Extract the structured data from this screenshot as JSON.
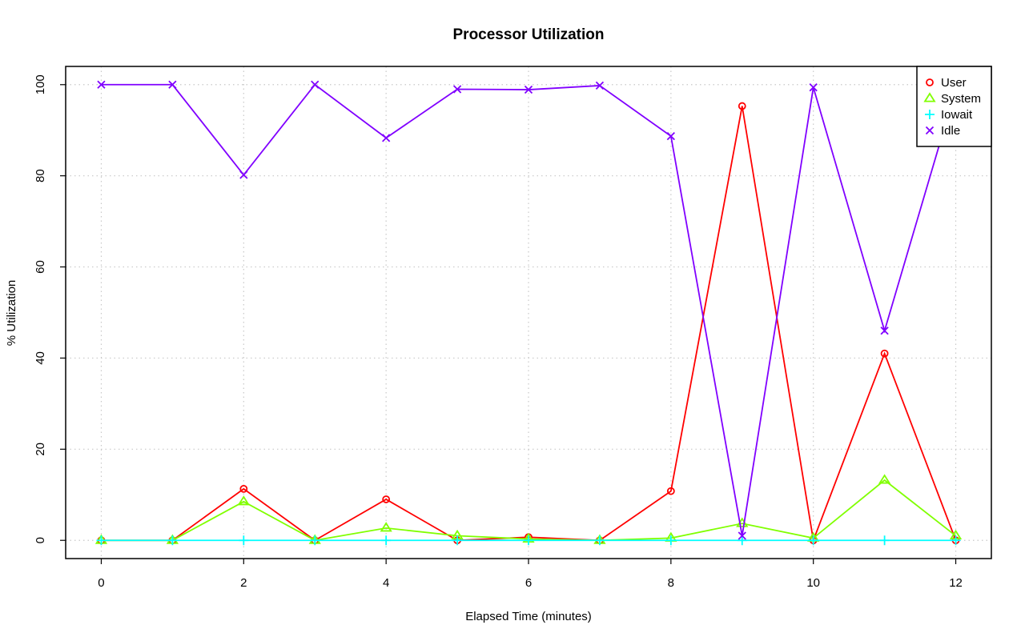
{
  "chart_data": {
    "type": "line",
    "title": "Processor Utilization",
    "xlabel": "Elapsed Time (minutes)",
    "ylabel": "% Utilization",
    "x": [
      0,
      1,
      2,
      3,
      4,
      5,
      6,
      7,
      8,
      9,
      10,
      11,
      12
    ],
    "xlim": [
      -0.5,
      12.5
    ],
    "ylim": [
      -4,
      104
    ],
    "xticks": [
      0,
      2,
      4,
      6,
      8,
      10,
      12
    ],
    "yticks": [
      0,
      20,
      40,
      60,
      80,
      100
    ],
    "grid": true,
    "legend_position": "top-right",
    "series": [
      {
        "name": "User",
        "color": "#ff0000",
        "marker": "circle",
        "values": [
          0,
          0,
          11.3,
          0,
          9,
          0,
          0.7,
          0,
          10.8,
          95.3,
          0,
          41,
          0
        ]
      },
      {
        "name": "System",
        "color": "#80ff00",
        "marker": "triangle",
        "values": [
          0,
          0,
          8.5,
          0,
          2.7,
          1,
          0.3,
          0,
          0.5,
          3.7,
          0.5,
          13.2,
          1
        ]
      },
      {
        "name": "Iowait",
        "color": "#00ffff",
        "marker": "plus",
        "values": [
          0,
          0,
          0,
          0,
          0,
          0,
          0,
          0,
          0,
          0,
          0,
          0,
          0
        ]
      },
      {
        "name": "Idle",
        "color": "#8000ff",
        "marker": "cross",
        "values": [
          100,
          100,
          80.2,
          100,
          88.3,
          99,
          98.9,
          99.8,
          88.7,
          1,
          99.4,
          46,
          99
        ]
      }
    ]
  }
}
